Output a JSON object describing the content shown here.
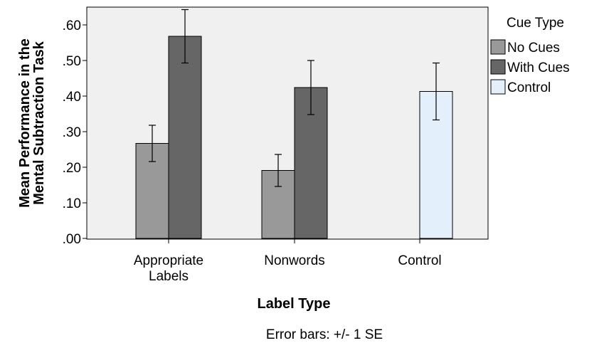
{
  "chart_data": {
    "type": "bar",
    "categories": [
      "Appropriate\nLabels",
      "Nonwords",
      "Control"
    ],
    "series": [
      {
        "name": "No Cues",
        "color": "#999999",
        "values": [
          0.267,
          0.191,
          null
        ],
        "se": [
          0.051,
          0.045,
          null
        ]
      },
      {
        "name": "With Cues",
        "color": "#666666",
        "values": [
          0.568,
          0.424,
          null
        ],
        "se": [
          0.075,
          0.076,
          null
        ]
      },
      {
        "name": "Control",
        "color": "#e3f0fc",
        "values": [
          null,
          null,
          0.413
        ],
        "se": [
          null,
          null,
          0.08
        ]
      }
    ],
    "xlabel": "Label Type",
    "ylabel": "Mean Performance in the\nMental Subtraction Task",
    "ylim": [
      0,
      0.65
    ],
    "yticks": [
      ".00",
      ".10",
      ".20",
      ".30",
      ".40",
      ".50",
      ".60"
    ],
    "legend_title": "Cue Type",
    "legend_position": "right",
    "note": "Error bars: +/- 1 SE",
    "plot_background": "#f0f0f0",
    "grid": false
  }
}
